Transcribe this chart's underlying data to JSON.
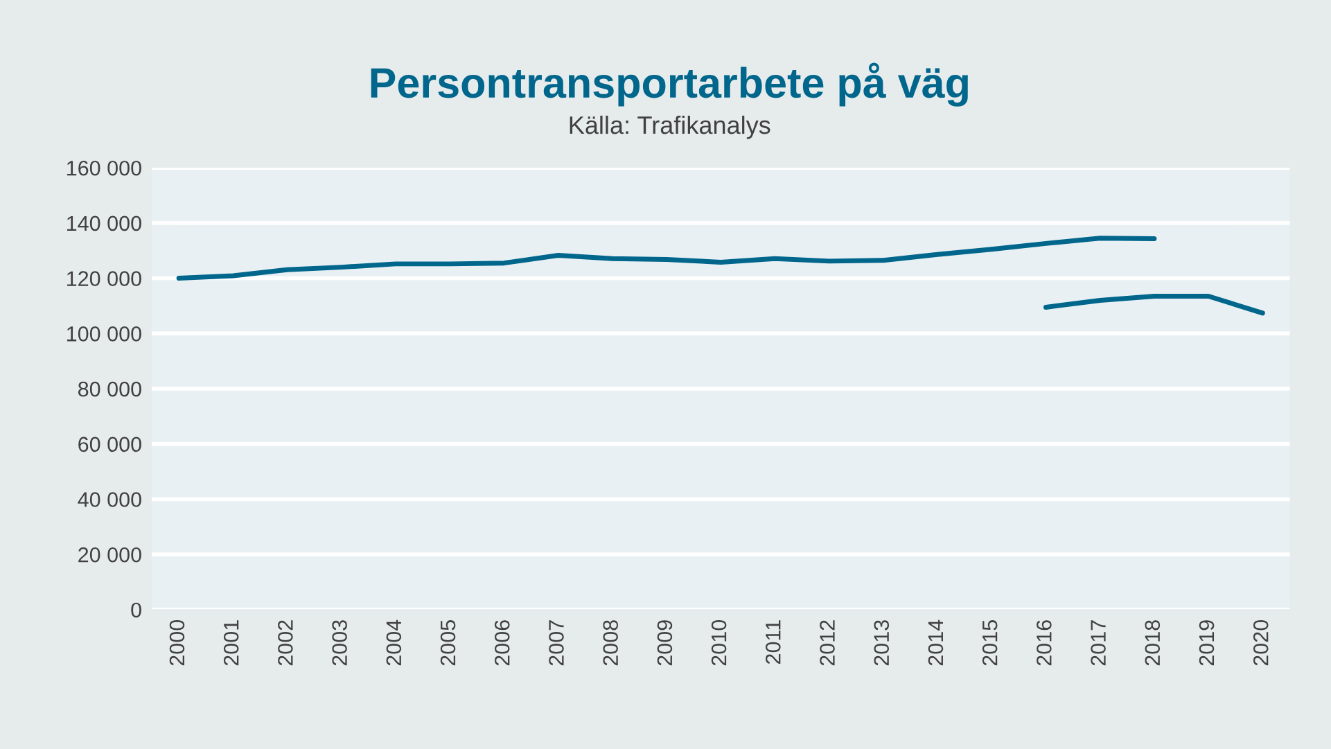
{
  "chart_data": {
    "type": "line",
    "title": "Persontransportarbete på väg",
    "subtitle": "Källa: Trafikanalys",
    "categories": [
      "2000",
      "2001",
      "2002",
      "2003",
      "2004",
      "2005",
      "2006",
      "2007",
      "2008",
      "2009",
      "2010",
      "2011",
      "2012",
      "2013",
      "2014",
      "2015",
      "2016",
      "2017",
      "2018",
      "2019",
      "2020"
    ],
    "series": [
      {
        "color": "#00668c",
        "values": [
          120000,
          120900,
          123100,
          124000,
          125200,
          125200,
          125500,
          128300,
          127100,
          126800,
          125800,
          127100,
          126200,
          126500,
          128600,
          130500,
          132600,
          134500,
          134300,
          null,
          null
        ]
      },
      {
        "color": "#00668c",
        "values": [
          null,
          null,
          null,
          null,
          null,
          null,
          null,
          null,
          null,
          null,
          null,
          null,
          null,
          null,
          null,
          null,
          109500,
          112000,
          113500,
          113500,
          107400
        ]
      }
    ],
    "ylim": [
      0,
      160000
    ],
    "yticks": [
      {
        "value": 0,
        "label": "0"
      },
      {
        "value": 20000,
        "label": "20 000"
      },
      {
        "value": 40000,
        "label": "40 000"
      },
      {
        "value": 60000,
        "label": "60 000"
      },
      {
        "value": 80000,
        "label": "80 000"
      },
      {
        "value": 100000,
        "label": "100 000"
      },
      {
        "value": 120000,
        "label": "120 000"
      },
      {
        "value": 140000,
        "label": "140 000"
      },
      {
        "value": 160000,
        "label": "160 000"
      }
    ],
    "grid": "y"
  }
}
